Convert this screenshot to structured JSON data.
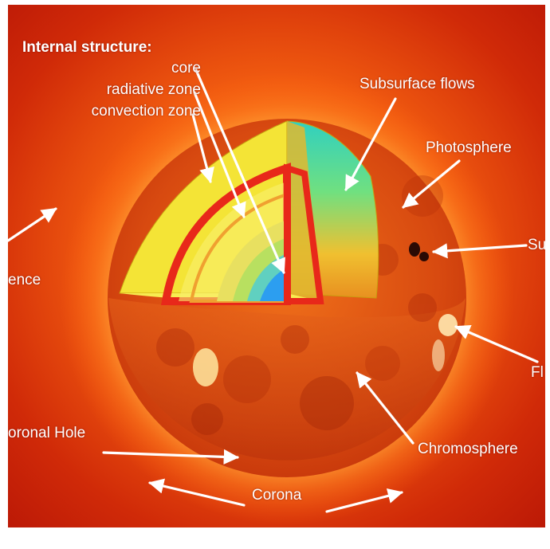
{
  "diagram": {
    "colors": {
      "background": "#c41a08",
      "glow": "#ff7a10",
      "surface": "#e85a12",
      "cut_face": "#f2e020",
      "core": "#2a9be8"
    },
    "labels": {
      "internal_structure": "Internal structure:",
      "core": "core",
      "radiative_zone": "radiative zone",
      "convection_zone": "convection zone",
      "subsurface_flows": "Subsurface flows",
      "photosphere": "Photosphere",
      "sunspot": "Su",
      "prominence": "ence",
      "flare": "Fl",
      "coronal_hole": "oronal Hole",
      "chromosphere": "Chromosphere",
      "corona": "Corona"
    }
  }
}
